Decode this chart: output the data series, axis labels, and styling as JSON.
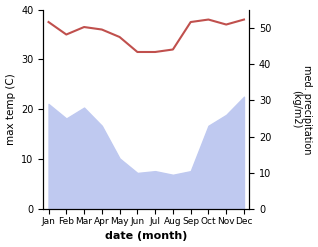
{
  "months": [
    "Jan",
    "Feb",
    "Mar",
    "Apr",
    "May",
    "Jun",
    "Jul",
    "Aug",
    "Sep",
    "Oct",
    "Nov",
    "Dec"
  ],
  "temp": [
    37.5,
    35.0,
    36.5,
    36.0,
    34.5,
    31.5,
    31.5,
    32.0,
    37.5,
    38.0,
    37.0,
    38.0
  ],
  "precip": [
    290,
    250,
    280,
    230,
    140,
    100,
    105,
    95,
    105,
    230,
    260,
    310
  ],
  "temp_color": "#c0504d",
  "precip_fill_color": "#bfc9f0",
  "ylabel_left": "max temp (C)",
  "ylabel_right": "med. precipitation\n(kg/m2)",
  "xlabel": "date (month)",
  "ylim_left": [
    0,
    40
  ],
  "ylim_right": [
    0,
    550
  ],
  "yticks_left": [
    0,
    10,
    20,
    30,
    40
  ],
  "yticks_right": [
    0,
    10,
    20,
    30,
    40,
    50
  ],
  "ytick_right_labels": [
    "0",
    "10",
    "20",
    "30",
    "40",
    "50"
  ],
  "bg_color": "#ffffff"
}
